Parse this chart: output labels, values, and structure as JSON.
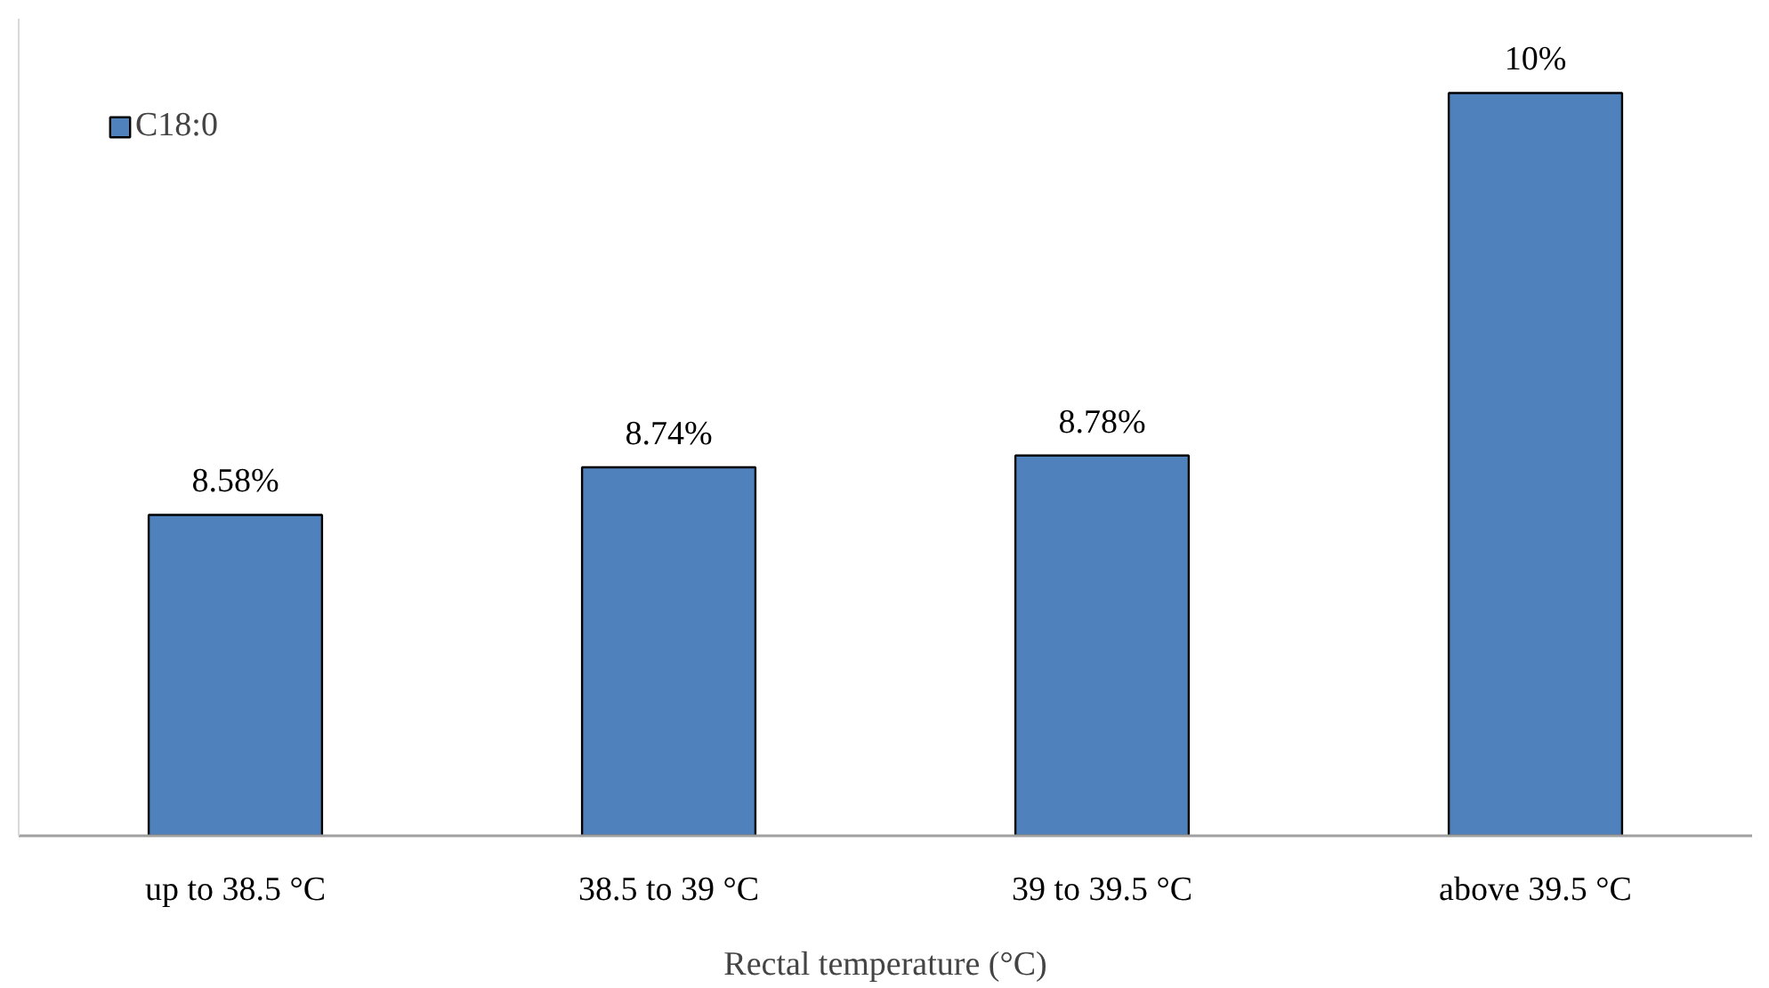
{
  "chart_data": {
    "type": "bar",
    "xlabel": "Rectal temperature (°C)",
    "categories": [
      "up to 38.5 °C",
      "38.5 to 39 °C",
      "39 to 39.5 °C",
      "above 39.5 °C"
    ],
    "series": [
      {
        "name": "C18:0",
        "color": "#4f81bd",
        "values": [
          8.58,
          8.74,
          8.78,
          10
        ],
        "value_labels": [
          "8.58%",
          "8.74%",
          "8.78%",
          "10%"
        ]
      }
    ],
    "ylim": [
      7.5,
      10.25
    ],
    "tick_labels": "x",
    "grid": false,
    "legend": "top left"
  }
}
